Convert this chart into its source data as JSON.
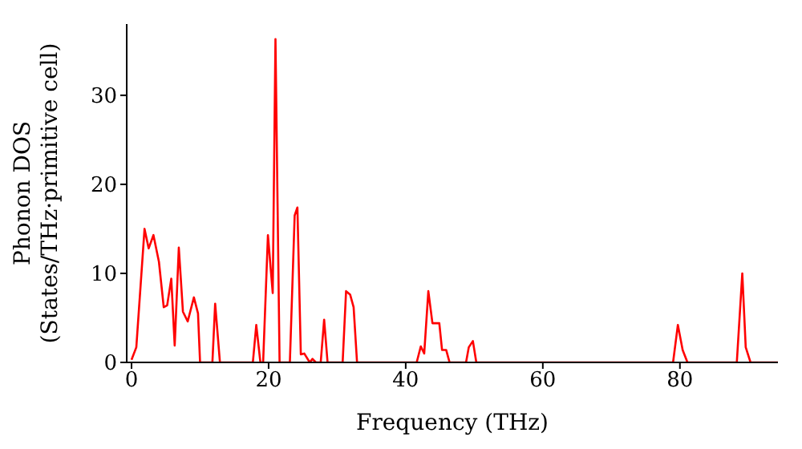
{
  "chart_data": {
    "type": "line",
    "xlabel": "Frequency (THz)",
    "ylabel": "Phonon DOS\n(States/THz·primitive cell)",
    "x": [
      0,
      0.7,
      1.9,
      2.5,
      3.2,
      4,
      4.7,
      5.2,
      5.8,
      6.3,
      6.9,
      7.5,
      8.2,
      9.1,
      9.7,
      10,
      11.8,
      12.2,
      12.9,
      17.7,
      18.2,
      18.8,
      19.2,
      19.9,
      20.6,
      21,
      21.6,
      23.1,
      23.8,
      24.2,
      24.7,
      25.2,
      26,
      26.4,
      26.9,
      27.6,
      28.1,
      28.6,
      30.8,
      31.3,
      31.9,
      32.4,
      32.9,
      41.6,
      42.2,
      42.7,
      43.3,
      43.9,
      44.9,
      45.3,
      45.9,
      46.4,
      48.8,
      49.2,
      49.8,
      50.3,
      79,
      79.7,
      80.4,
      81.1,
      88.3,
      89.1,
      89.6,
      90.3,
      94.3
    ],
    "series": [
      {
        "color": "#ff0000",
        "values": [
          0.3,
          1.7,
          15,
          12.8,
          14.3,
          11.3,
          6.2,
          6.4,
          9.4,
          1.9,
          12.9,
          5.7,
          4.6,
          7.3,
          5.5,
          0,
          0,
          6.6,
          0,
          0,
          4.2,
          0,
          0,
          14.3,
          7.8,
          36.3,
          0,
          0,
          16.5,
          17.4,
          0.9,
          1,
          0,
          0.4,
          0,
          0,
          4.8,
          0,
          0,
          8,
          7.6,
          6.2,
          0,
          0,
          1.8,
          1,
          8,
          4.4,
          4.4,
          1.4,
          1.4,
          0,
          0,
          1.7,
          2.4,
          0,
          0,
          4.2,
          1.4,
          0,
          0,
          10,
          1.7,
          0,
          0
        ]
      }
    ],
    "xlim": [
      -0.7,
      94.3
    ],
    "ylim": [
      0,
      38
    ],
    "xticks": [
      0,
      20,
      40,
      60,
      80
    ],
    "yticks": [
      0,
      10,
      20,
      30
    ],
    "grid": false,
    "legend": false,
    "marker": "none",
    "line_style": "solid"
  }
}
